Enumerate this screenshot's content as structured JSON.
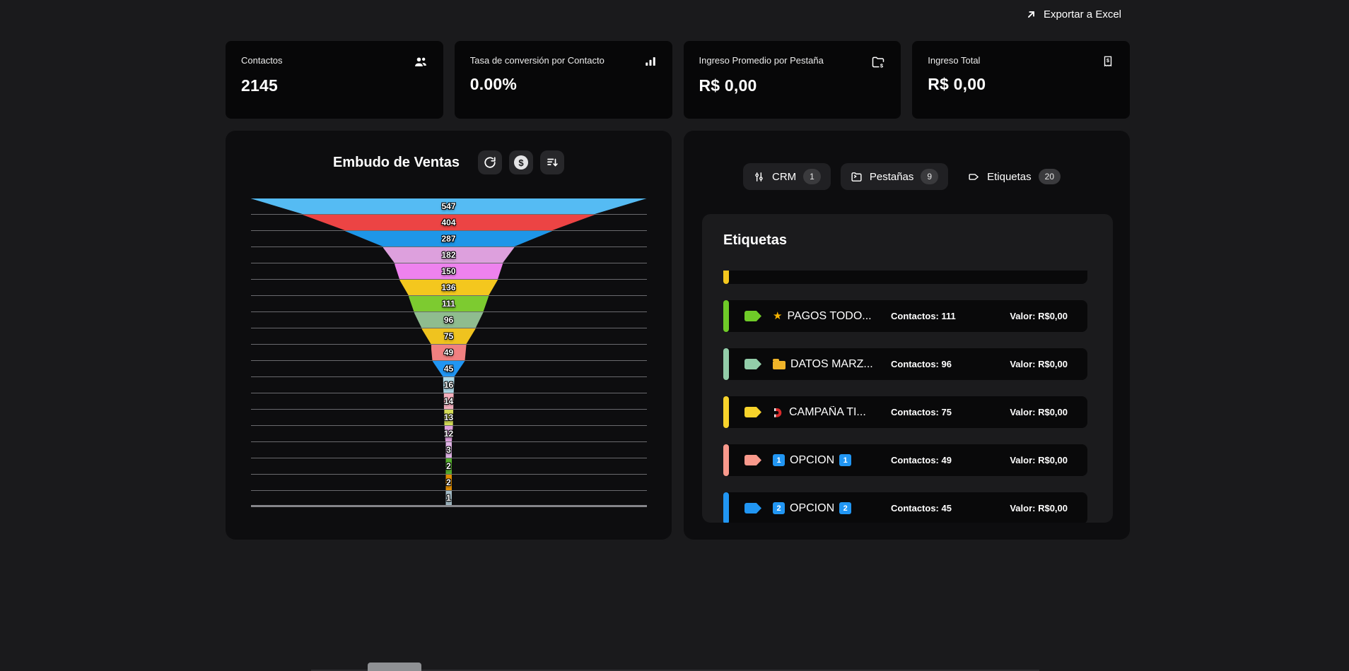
{
  "topbar": {
    "export_label": "Exportar a Excel",
    "export_icon": "arrow-up-right-icon"
  },
  "stats": [
    {
      "label": "Contactos",
      "value": "2145",
      "icon": "users-icon"
    },
    {
      "label": "Tasa de conversión por Contacto",
      "value": "0.00%",
      "icon": "bar-chart-icon"
    },
    {
      "label": "Ingreso Promedio por Pestaña",
      "value": "R$ 0,00",
      "icon": "folder-dollar-icon"
    },
    {
      "label": "Ingreso Total",
      "value": "R$ 0,00",
      "icon": "receipt-icon"
    }
  ],
  "funnel_panel": {
    "title": "Embudo de Ventas",
    "buttons": [
      {
        "icon": "refresh-icon"
      },
      {
        "icon": "dollar-circle-icon",
        "glyph": "$"
      },
      {
        "icon": "sort-descending-icon"
      }
    ]
  },
  "chart_data": {
    "type": "funnel",
    "title": "Embudo de Ventas",
    "values": [
      547,
      404,
      287,
      182,
      150,
      136,
      111,
      96,
      75,
      49,
      45,
      16,
      14,
      13,
      12,
      3,
      2,
      2,
      1
    ],
    "colors": [
      "#55bbf3",
      "#ec4444",
      "#1e96e8",
      "#dda0dd",
      "#ee82ee",
      "#f4c71e",
      "#7dcb30",
      "#8fbc8f",
      "#efc31f",
      "#f08080",
      "#2196f3",
      "#add8e6",
      "#f3afbc",
      "#d3db58",
      "#dda0dd",
      "#e0b3e6",
      "#56ad2f",
      "#e08e00",
      "#a2b9c4"
    ],
    "max_value": 547,
    "orientation": "top-wide vertical funnel",
    "gridlines": true
  },
  "tabs": [
    {
      "label": "CRM",
      "count": "1",
      "icon": "sliders-icon",
      "active": false
    },
    {
      "label": "Pestañas",
      "count": "9",
      "icon": "folder-icon",
      "active": false
    },
    {
      "label": "Etiquetas",
      "count": "20",
      "icon": "tag-icon",
      "active": true
    }
  ],
  "etiquetas": {
    "heading": "Etiquetas",
    "items": [
      {
        "partial": true,
        "accent": "#f4c71e"
      },
      {
        "accent": "#6fcb28",
        "prefix_icon": "star-icon",
        "name": "PAGOS TODO...",
        "contacts": "Contactos: 111",
        "value": "Valor: R$0,00"
      },
      {
        "accent": "#93cda9",
        "prefix_icon": "folder-emoji-icon",
        "name": "DATOS MARZ...",
        "contacts": "Contactos: 96",
        "value": "Valor: R$0,00"
      },
      {
        "accent": "#f7d32b",
        "prefix_icon": "magnet-icon",
        "name": "CAMPAÑA TI...",
        "contacts": "Contactos: 75",
        "value": "Valor: R$0,00"
      },
      {
        "accent": "#f9998c",
        "prefix_icon": "keycap-icon",
        "keycap": "1",
        "name": "OPCION",
        "suffix_icon": "keycap-icon",
        "contacts": "Contactos: 49",
        "value": "Valor: R$0,00"
      },
      {
        "accent": "#2196f3",
        "prefix_icon": "keycap-icon",
        "keycap": "2",
        "name": "OPCION",
        "suffix_icon": "keycap-icon",
        "contacts": "Contactos: 45",
        "value": "Valor: R$0,00"
      }
    ]
  },
  "colors": {
    "page_bg": "#1a1a1c",
    "panel_bg": "#0d0d0f",
    "card_bg": "#070708",
    "inner_card_bg": "#1b1b1d",
    "item_bg": "#09090a",
    "badge_bg": "#3a3a3d",
    "gridline": "#6a6a6e",
    "accent_blue": "#2196f3"
  }
}
